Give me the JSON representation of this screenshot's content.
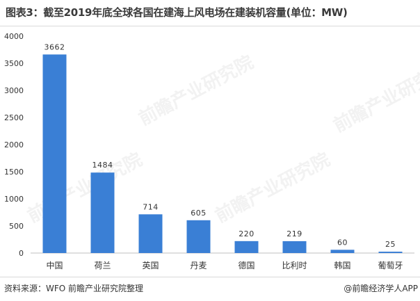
{
  "title": "图表3：截至2019年底全球各国在建海上风电场在建装机容量(单位：MW)",
  "source": "资料来源：WFO 前瞻产业研究院整理",
  "brand": "@前瞻经济学人APP",
  "watermark": "前瞻产业研究院",
  "colors": {
    "bar": "#3a7fd5",
    "axis": "#bfbfbf"
  },
  "chart_data": {
    "type": "bar",
    "categories": [
      "中国",
      "荷兰",
      "英国",
      "丹麦",
      "德国",
      "比利时",
      "韩国",
      "葡萄牙"
    ],
    "values": [
      3662,
      1484,
      714,
      605,
      220,
      219,
      60,
      25
    ],
    "ylim": [
      0,
      4000
    ],
    "yticks": [
      0,
      500,
      1000,
      1500,
      2000,
      2500,
      3000,
      3500,
      4000
    ],
    "grid": false,
    "data_labels": true
  }
}
